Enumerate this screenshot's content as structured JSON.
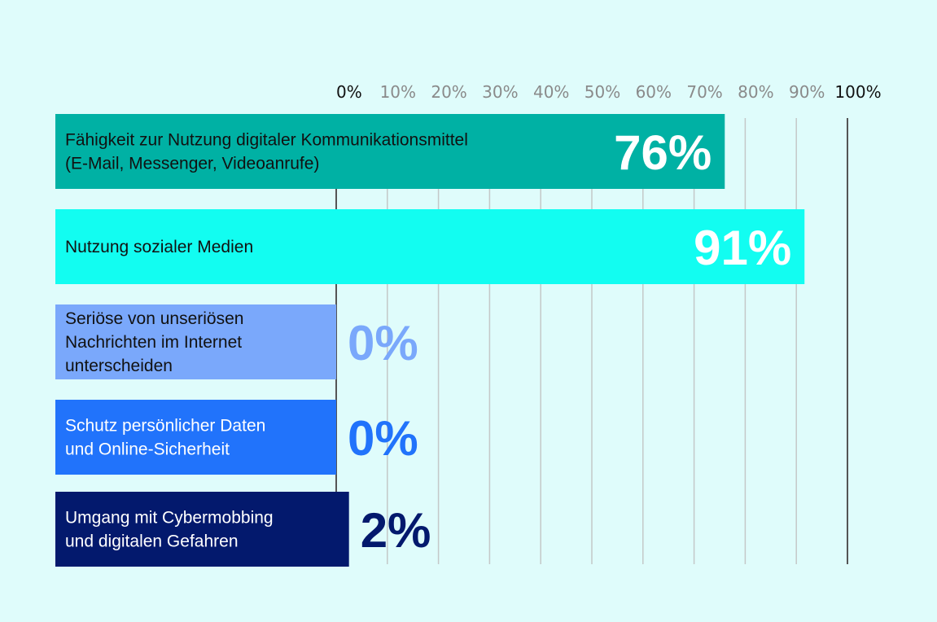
{
  "chart_data": {
    "type": "bar",
    "orientation": "horizontal",
    "xlim": [
      0,
      100
    ],
    "grid": true,
    "tick_labels": [
      "0%",
      "10%",
      "20%",
      "30%",
      "40%",
      "50%",
      "60%",
      "70%",
      "80%",
      "90%",
      "100%"
    ],
    "tick_values": [
      0,
      10,
      20,
      30,
      40,
      50,
      60,
      70,
      80,
      90,
      100
    ],
    "categories": [
      [
        "Fähigkeit zur Nutzung digitaler Kommunikationsmittel",
        "(E-Mail, Messenger, Videoanrufe)"
      ],
      [
        "Nutzung sozialer Medien"
      ],
      [
        "Seriöse von unseriösen",
        "Nachrichten im Internet",
        "unterscheiden"
      ],
      [
        "Schutz persönlicher Daten",
        "und Online-Sicherheit"
      ],
      [
        "Umgang mit Cybermobbing",
        "und digitalen Gefahren"
      ]
    ],
    "values": [
      76,
      91,
      0,
      0,
      2
    ],
    "data_labels": [
      "76%",
      "91%",
      "0%",
      "0%",
      "2%"
    ],
    "colors": [
      "#00b1a4",
      "#12fdf1",
      "#7aa8fb",
      "#2173fb",
      "#03196d"
    ],
    "label_text_colors": [
      "#111111",
      "#111111",
      "#111111",
      "#ffffff",
      "#ffffff"
    ],
    "background": "#dffcfb"
  }
}
